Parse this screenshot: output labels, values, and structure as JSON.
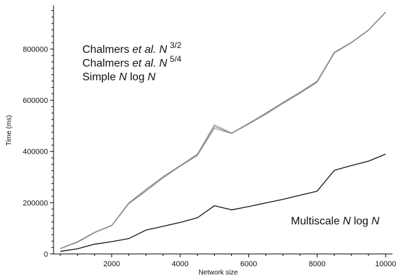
{
  "chart_data": {
    "type": "line",
    "xlabel": "Network size",
    "ylabel": "Time (ms)",
    "xlim": [
      300,
      10200
    ],
    "ylim": [
      0,
      970000
    ],
    "x_ticks": [
      2000,
      4000,
      6000,
      8000,
      10000
    ],
    "x_tick_labels": [
      "2000",
      "4000",
      "6000",
      "8000",
      "10000"
    ],
    "y_ticks": [
      0,
      200000,
      400000,
      600000,
      800000
    ],
    "y_tick_labels": [
      "0",
      "200000",
      "400000",
      "600000",
      "800000"
    ],
    "grid": false,
    "series": [
      {
        "name": "Chalmers et al. N 3/2",
        "color": "#aaaaaa",
        "x": [
          500,
          1000,
          1500,
          2000,
          2500,
          3000,
          3500,
          4000,
          4500,
          5000,
          5500,
          6000,
          6500,
          7000,
          7500,
          8000,
          8500,
          9000,
          9500,
          10000
        ],
        "y": [
          22000,
          48000,
          85000,
          112000,
          200000,
          252000,
          302000,
          345000,
          390000,
          505000,
          472000,
          510000,
          550000,
          592000,
          632000,
          675000,
          788000,
          826000,
          875000,
          945000
        ]
      },
      {
        "name": "Chalmers et al. N 5/4",
        "color": "#999999",
        "x": [
          500,
          1000,
          1500,
          2000,
          2500,
          3000,
          3500,
          4000,
          4500,
          5000,
          5500,
          6000,
          6500,
          7000,
          7500,
          8000,
          8500,
          9000,
          9500,
          10000
        ],
        "y": [
          21000,
          45000,
          83000,
          110000,
          196000,
          245000,
          297000,
          342000,
          384000,
          490000,
          470000,
          507000,
          545000,
          587000,
          627000,
          670000,
          784000,
          824000,
          873000,
          943000
        ]
      },
      {
        "name": "Simple N log N",
        "color": "#888888",
        "x": [
          500,
          1000,
          1500,
          2000,
          2500,
          3000,
          3500,
          4000,
          4500,
          5000,
          5500,
          6000,
          6500,
          7000,
          7500,
          8000,
          8500,
          9000,
          9500,
          10000
        ],
        "y": [
          20000,
          47000,
          84000,
          111000,
          198000,
          250000,
          300000,
          344000,
          388000,
          498000,
          471000,
          509000,
          548000,
          590000,
          630000,
          673000,
          786000,
          825000,
          874000,
          944000
        ]
      },
      {
        "name": "Multiscale N log N",
        "color": "#111111",
        "x": [
          500,
          1000,
          1500,
          2000,
          2500,
          3000,
          3500,
          4000,
          4500,
          5000,
          5500,
          6000,
          6500,
          7000,
          7500,
          8000,
          8500,
          9000,
          9500,
          10000
        ],
        "y": [
          10000,
          20000,
          38000,
          48000,
          60000,
          93000,
          108000,
          123000,
          141000,
          188000,
          172000,
          185000,
          199000,
          213000,
          229000,
          245000,
          326000,
          345000,
          362000,
          390000
        ]
      }
    ],
    "annotations": {
      "top_lines": [
        {
          "prefix": "Chalmers ",
          "italic": "et al. N",
          "sup": "3/2"
        },
        {
          "prefix": "Chalmers ",
          "italic": "et al. N",
          "sup": "5/4"
        },
        {
          "prefix": "Simple ",
          "italic": "N",
          "suffix": " log ",
          "italic2": "N"
        }
      ],
      "bottom": {
        "prefix": "Multiscale ",
        "italic": "N",
        "suffix": " log ",
        "italic2": "N"
      }
    }
  }
}
